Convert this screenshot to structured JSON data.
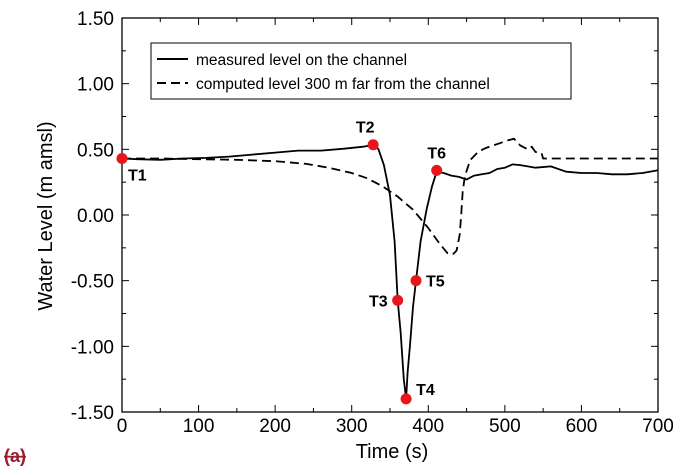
{
  "panel_label": "(a)",
  "colors": {
    "marker": "#e8151b",
    "line": "#000000",
    "panel_label": "#9b1c2a"
  },
  "chart_data": {
    "type": "line",
    "title": "",
    "xlabel": "Time (s)",
    "ylabel": "Water Level (m amsl)",
    "xlim": [
      0,
      700
    ],
    "ylim": [
      -1.5,
      1.5
    ],
    "grid": false,
    "legend_position": "top-center",
    "x_ticks": [
      0,
      100,
      200,
      300,
      400,
      500,
      600,
      700
    ],
    "x_tick_labels": [
      "0",
      "100",
      "200",
      "300",
      "400",
      "500",
      "600",
      "700"
    ],
    "y_ticks": [
      -1.5,
      -1.0,
      -0.5,
      0.0,
      0.5,
      1.0,
      1.5
    ],
    "y_tick_labels": [
      "-1.50",
      "-1.00",
      "-0.50",
      "0.00",
      "0.50",
      "1.00",
      "1.50"
    ],
    "series": [
      {
        "name": "measured level on the channel",
        "style": "solid",
        "points": [
          [
            0,
            0.43
          ],
          [
            20,
            0.425
          ],
          [
            50,
            0.42
          ],
          [
            80,
            0.43
          ],
          [
            110,
            0.435
          ],
          [
            140,
            0.445
          ],
          [
            170,
            0.46
          ],
          [
            200,
            0.475
          ],
          [
            230,
            0.49
          ],
          [
            260,
            0.49
          ],
          [
            290,
            0.505
          ],
          [
            315,
            0.52
          ],
          [
            328,
            0.535
          ],
          [
            335,
            0.5
          ],
          [
            342,
            0.38
          ],
          [
            350,
            0.15
          ],
          [
            356,
            -0.2
          ],
          [
            360,
            -0.65
          ],
          [
            364,
            -0.9
          ],
          [
            368,
            -1.25
          ],
          [
            371,
            -1.4
          ],
          [
            373,
            -1.2
          ],
          [
            376,
            -1.0
          ],
          [
            380,
            -0.7
          ],
          [
            384,
            -0.5
          ],
          [
            390,
            -0.2
          ],
          [
            398,
            0.05
          ],
          [
            405,
            0.22
          ],
          [
            411,
            0.33
          ],
          [
            420,
            0.32
          ],
          [
            430,
            0.3
          ],
          [
            440,
            0.29
          ],
          [
            450,
            0.27
          ],
          [
            460,
            0.3
          ],
          [
            470,
            0.31
          ],
          [
            480,
            0.32
          ],
          [
            490,
            0.35
          ],
          [
            500,
            0.36
          ],
          [
            510,
            0.385
          ],
          [
            520,
            0.38
          ],
          [
            530,
            0.37
          ],
          [
            540,
            0.36
          ],
          [
            560,
            0.37
          ],
          [
            580,
            0.33
          ],
          [
            600,
            0.32
          ],
          [
            620,
            0.32
          ],
          [
            640,
            0.31
          ],
          [
            660,
            0.31
          ],
          [
            680,
            0.32
          ],
          [
            700,
            0.34
          ]
        ]
      },
      {
        "name": "computed level 300 m far from the channel",
        "style": "dashed",
        "points": [
          [
            0,
            0.43
          ],
          [
            50,
            0.43
          ],
          [
            100,
            0.425
          ],
          [
            150,
            0.42
          ],
          [
            200,
            0.41
          ],
          [
            240,
            0.39
          ],
          [
            270,
            0.36
          ],
          [
            300,
            0.32
          ],
          [
            320,
            0.28
          ],
          [
            340,
            0.22
          ],
          [
            360,
            0.14
          ],
          [
            380,
            0.04
          ],
          [
            400,
            -0.1
          ],
          [
            415,
            -0.22
          ],
          [
            425,
            -0.29
          ],
          [
            432,
            -0.3
          ],
          [
            437,
            -0.27
          ],
          [
            441,
            -0.15
          ],
          [
            443,
            0.0
          ],
          [
            445,
            0.18
          ],
          [
            448,
            0.3
          ],
          [
            455,
            0.42
          ],
          [
            465,
            0.48
          ],
          [
            475,
            0.51
          ],
          [
            485,
            0.53
          ],
          [
            495,
            0.55
          ],
          [
            505,
            0.57
          ],
          [
            512,
            0.58
          ],
          [
            520,
            0.53
          ],
          [
            530,
            0.5
          ],
          [
            535,
            0.52
          ],
          [
            540,
            0.48
          ],
          [
            548,
            0.47
          ],
          [
            550,
            0.43
          ],
          [
            600,
            0.43
          ],
          [
            650,
            0.43
          ],
          [
            700,
            0.43
          ]
        ]
      }
    ],
    "markers": [
      {
        "label": "T1",
        "x": 0,
        "y": 0.43
      },
      {
        "label": "T2",
        "x": 328,
        "y": 0.535
      },
      {
        "label": "T3",
        "x": 360,
        "y": -0.65
      },
      {
        "label": "T4",
        "x": 371,
        "y": -1.4
      },
      {
        "label": "T5",
        "x": 384,
        "y": -0.5
      },
      {
        "label": "T6",
        "x": 411,
        "y": 0.34
      }
    ]
  }
}
